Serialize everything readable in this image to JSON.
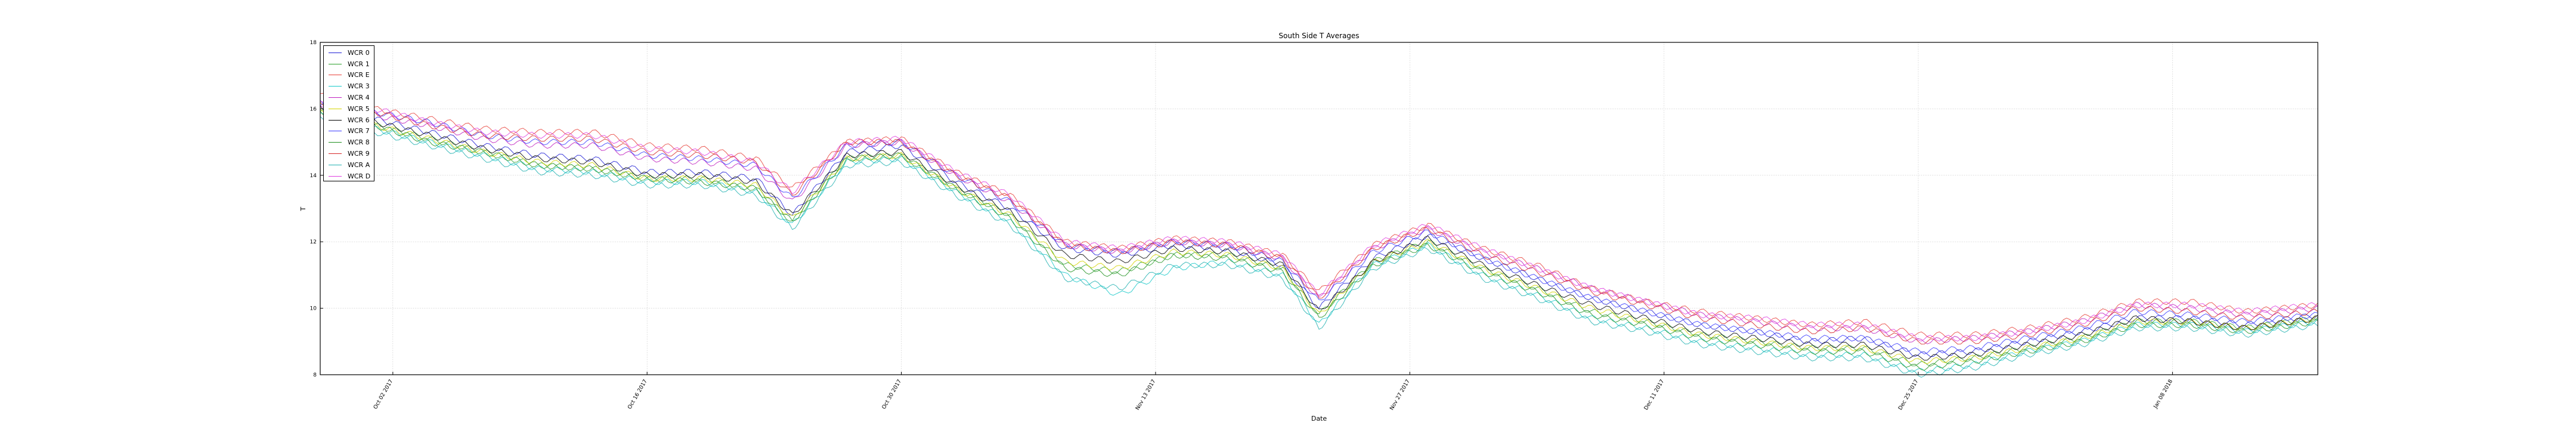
{
  "chart_data": {
    "type": "line",
    "title": "South Side T Averages",
    "xlabel": "Date",
    "ylabel": "T",
    "ylim": [
      8,
      18
    ],
    "yticks": [
      8,
      10,
      12,
      14,
      16,
      18
    ],
    "xlim": [
      "2017-09-28",
      "2018-01-16"
    ],
    "xticks": [
      "Oct 02 2017",
      "Oct 16 2017",
      "Oct 30 2017",
      "Nov 13 2017",
      "Nov 27 2017",
      "Dec 11 2017",
      "Dec 25 2017",
      "Jan 08 2018"
    ],
    "xtick_dates": [
      "2017-10-02",
      "2017-10-16",
      "2017-10-30",
      "2017-11-13",
      "2017-11-27",
      "2017-12-11",
      "2017-12-25",
      "2018-01-08"
    ],
    "grid": true,
    "legend_position": "top-left",
    "x": [
      "2017-09-28",
      "2017-10-01",
      "2017-10-04",
      "2017-10-07",
      "2017-10-10",
      "2017-10-13",
      "2017-10-16",
      "2017-10-19",
      "2017-10-22",
      "2017-10-24",
      "2017-10-27",
      "2017-10-30",
      "2017-11-02",
      "2017-11-05",
      "2017-11-08",
      "2017-11-11",
      "2017-11-14",
      "2017-11-17",
      "2017-11-20",
      "2017-11-22",
      "2017-11-25",
      "2017-11-28",
      "2017-12-01",
      "2017-12-04",
      "2017-12-07",
      "2017-12-10",
      "2017-12-13",
      "2017-12-16",
      "2017-12-19",
      "2017-12-22",
      "2017-12-25",
      "2017-12-28",
      "2017-12-31",
      "2018-01-03",
      "2018-01-06",
      "2018-01-09",
      "2018-01-12",
      "2018-01-16"
    ],
    "series": [
      {
        "name": "WCR 0",
        "color": "#1f1fd6",
        "values": [
          16.1,
          15.7,
          15.3,
          14.9,
          14.6,
          14.5,
          14.1,
          14.1,
          13.9,
          12.8,
          14.7,
          14.9,
          13.8,
          13.0,
          11.8,
          11.6,
          11.9,
          11.8,
          11.3,
          10.0,
          11.5,
          12.2,
          11.5,
          10.9,
          10.3,
          9.9,
          9.5,
          9.3,
          9.0,
          9.1,
          8.6,
          8.7,
          9.0,
          9.3,
          9.7,
          9.7,
          9.5,
          9.8
        ]
      },
      {
        "name": "WCR 1",
        "color": "#2ca02c",
        "values": [
          15.9,
          15.5,
          15.1,
          14.7,
          14.3,
          14.2,
          13.9,
          13.9,
          13.6,
          12.6,
          14.5,
          14.6,
          13.6,
          12.8,
          11.3,
          11.1,
          11.6,
          11.6,
          11.2,
          9.8,
          11.4,
          12.0,
          11.2,
          10.6,
          9.9,
          9.6,
          9.2,
          9.0,
          8.8,
          8.8,
          8.3,
          8.5,
          8.8,
          9.1,
          9.6,
          9.6,
          9.4,
          9.7
        ]
      },
      {
        "name": "WCR E",
        "color": "#e8413a",
        "values": [
          16.4,
          16.0,
          15.7,
          15.4,
          15.3,
          15.3,
          14.9,
          14.8,
          14.5,
          13.6,
          15.0,
          15.1,
          14.1,
          13.4,
          12.0,
          11.8,
          12.1,
          12.0,
          11.6,
          10.5,
          11.9,
          12.5,
          11.8,
          11.3,
          10.6,
          10.2,
          9.9,
          9.7,
          9.5,
          9.6,
          9.2,
          9.2,
          9.4,
          9.7,
          10.2,
          10.2,
          9.9,
          10.1
        ]
      },
      {
        "name": "WCR 3",
        "color": "#17c9c9",
        "values": [
          15.8,
          15.4,
          15.0,
          14.6,
          14.2,
          14.1,
          13.8,
          13.8,
          13.5,
          12.5,
          14.4,
          14.5,
          13.5,
          12.6,
          11.0,
          10.4,
          11.2,
          11.4,
          11.0,
          9.5,
          11.3,
          11.9,
          11.0,
          10.4,
          9.7,
          9.4,
          9.0,
          8.8,
          8.6,
          8.6,
          8.1,
          8.3,
          8.7,
          9.0,
          9.5,
          9.5,
          9.3,
          9.6
        ]
      },
      {
        "name": "WCR 4",
        "color": "#c020c0",
        "values": [
          16.0,
          15.8,
          15.5,
          15.1,
          14.9,
          14.9,
          14.5,
          14.4,
          14.2,
          13.2,
          14.9,
          15.0,
          14.0,
          13.2,
          11.9,
          11.7,
          12.0,
          11.9,
          11.5,
          10.3,
          11.8,
          12.4,
          11.7,
          11.2,
          10.6,
          10.2,
          9.8,
          9.6,
          9.4,
          9.4,
          9.0,
          9.1,
          9.3,
          9.6,
          10.1,
          10.0,
          9.8,
          10.0
        ]
      },
      {
        "name": "WCR 5",
        "color": "#d4d400",
        "values": [
          15.9,
          15.5,
          15.1,
          14.7,
          14.4,
          14.3,
          13.9,
          13.9,
          13.7,
          12.7,
          14.5,
          14.6,
          13.6,
          12.8,
          11.4,
          11.2,
          11.7,
          11.6,
          11.2,
          9.8,
          11.4,
          12.0,
          11.2,
          10.6,
          10.0,
          9.6,
          9.2,
          9.0,
          8.8,
          8.8,
          8.4,
          8.5,
          8.8,
          9.1,
          9.6,
          9.6,
          9.4,
          9.7
        ]
      },
      {
        "name": "WCR 6",
        "color": "#000000",
        "values": [
          16.0,
          15.6,
          15.2,
          14.8,
          14.5,
          14.4,
          14.0,
          14.0,
          13.8,
          12.8,
          14.6,
          14.7,
          13.7,
          12.9,
          11.6,
          11.4,
          11.8,
          11.7,
          11.3,
          9.9,
          11.4,
          12.1,
          11.3,
          10.7,
          10.1,
          9.7,
          9.3,
          9.1,
          8.9,
          8.9,
          8.5,
          8.6,
          8.9,
          9.2,
          9.7,
          9.6,
          9.4,
          9.7
        ]
      },
      {
        "name": "WCR 7",
        "color": "#3a3aff",
        "values": [
          16.2,
          15.9,
          15.6,
          15.2,
          15.0,
          15.0,
          14.6,
          14.5,
          14.3,
          13.3,
          14.9,
          15.0,
          14.0,
          13.2,
          11.9,
          11.7,
          12.0,
          11.9,
          11.4,
          10.2,
          11.7,
          12.3,
          11.5,
          10.9,
          10.3,
          9.9,
          9.5,
          9.3,
          9.1,
          9.1,
          8.7,
          8.8,
          9.1,
          9.4,
          9.9,
          9.8,
          9.6,
          9.8
        ]
      },
      {
        "name": "WCR 8",
        "color": "#209020",
        "values": [
          15.9,
          15.5,
          15.0,
          14.7,
          14.3,
          14.2,
          13.9,
          13.8,
          13.6,
          12.6,
          14.5,
          14.6,
          13.6,
          12.7,
          11.2,
          11.0,
          11.6,
          11.5,
          11.1,
          9.7,
          11.3,
          11.9,
          11.1,
          10.5,
          9.8,
          9.5,
          9.1,
          8.9,
          8.7,
          8.7,
          8.2,
          8.4,
          8.7,
          9.0,
          9.5,
          9.5,
          9.3,
          9.6
        ]
      },
      {
        "name": "WCR 9",
        "color": "#d62728",
        "values": [
          16.2,
          15.9,
          15.5,
          15.2,
          15.1,
          15.1,
          14.7,
          14.6,
          14.4,
          13.4,
          15.0,
          15.0,
          14.0,
          13.3,
          11.9,
          11.7,
          12.0,
          11.9,
          11.5,
          10.3,
          11.8,
          12.4,
          11.6,
          11.1,
          10.5,
          10.1,
          9.7,
          9.5,
          9.3,
          9.4,
          9.0,
          9.0,
          9.2,
          9.5,
          10.0,
          9.9,
          9.7,
          9.9
        ]
      },
      {
        "name": "WCR A",
        "color": "#20b0b0",
        "values": [
          15.8,
          15.3,
          14.9,
          14.5,
          14.1,
          14.0,
          13.7,
          13.7,
          13.4,
          12.4,
          14.3,
          14.4,
          13.4,
          12.5,
          10.9,
          10.6,
          11.3,
          11.3,
          10.9,
          9.4,
          11.2,
          11.8,
          10.9,
          10.3,
          9.6,
          9.3,
          8.9,
          8.7,
          8.5,
          8.5,
          8.0,
          8.2,
          8.6,
          8.9,
          9.4,
          9.4,
          9.2,
          9.5
        ]
      },
      {
        "name": "WCR D",
        "color": "#e040e0",
        "values": [
          16.3,
          16.0,
          15.6,
          15.3,
          15.2,
          15.2,
          14.8,
          14.7,
          14.4,
          13.5,
          15.0,
          15.1,
          14.1,
          13.4,
          12.0,
          11.8,
          12.1,
          12.0,
          11.6,
          10.4,
          11.9,
          12.5,
          11.8,
          11.2,
          10.6,
          10.2,
          9.8,
          9.7,
          9.5,
          9.5,
          9.1,
          9.1,
          9.3,
          9.6,
          10.1,
          10.1,
          9.9,
          10.1
        ]
      }
    ]
  }
}
